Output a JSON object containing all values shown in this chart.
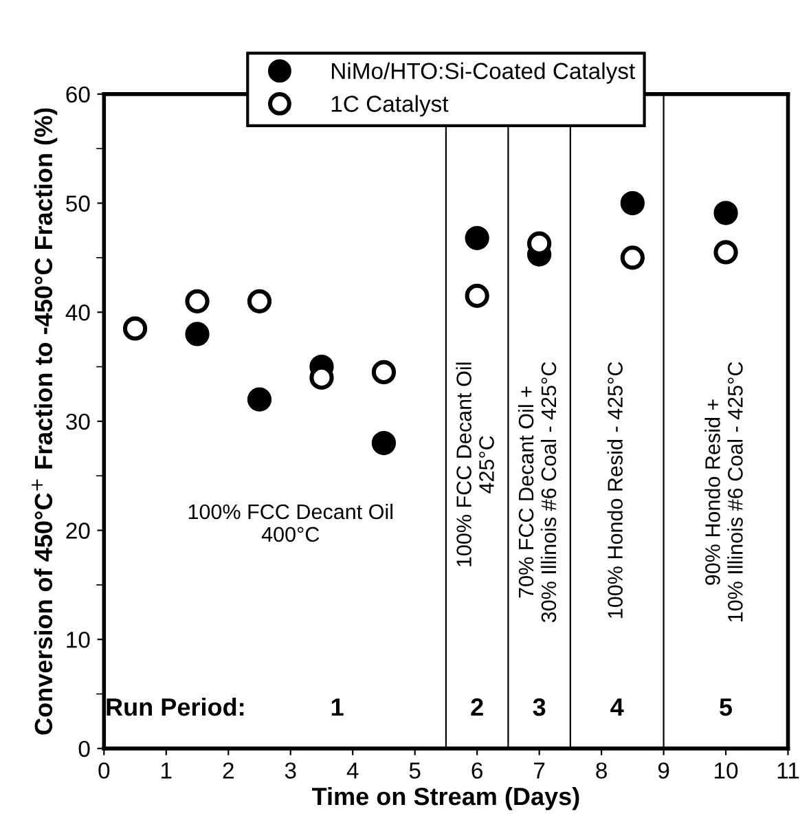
{
  "chart_data": {
    "type": "scatter",
    "xlabel": "Time on Stream (Days)",
    "ylabel": "Conversion of 450°C$^{+}$ Fraction to -450°C Fraction (%)",
    "xlim": [
      0,
      11
    ],
    "xticks": [
      0,
      1,
      2,
      3,
      4,
      5,
      6,
      7,
      8,
      9,
      10,
      11
    ],
    "ylim": [
      0,
      60
    ],
    "yticks": [
      0,
      10,
      20,
      30,
      40,
      50,
      60
    ],
    "grid": false,
    "legend": "top",
    "marker": "circle",
    "series": [
      {
        "name": "NiMo/HTO:Si-Coated Catalyst",
        "color": "#000000",
        "x": [
          1.5,
          2.5,
          3.5,
          4.5,
          6,
          7,
          8.5,
          10
        ],
        "values": [
          38,
          32,
          35,
          28,
          46.8,
          45.3,
          50,
          49.1
        ]
      },
      {
        "name": "1C Catalyst",
        "color": "#000000",
        "x": [
          0.5,
          1.5,
          2.5,
          3.5,
          4.5,
          6,
          7,
          8.5,
          10
        ],
        "values": [
          38.5,
          41,
          41,
          34,
          34.5,
          41.5,
          46.3,
          45,
          45.5
        ]
      }
    ],
    "ref_lines": [
      {
        "axis": "x",
        "value": 5.5,
        "color": "#000000"
      },
      {
        "axis": "x",
        "value": 6.5,
        "color": "#000000"
      },
      {
        "axis": "x",
        "value": 7.5,
        "color": "#000000"
      },
      {
        "axis": "x",
        "value": 9,
        "color": "#000000"
      }
    ],
    "annotations": [
      "100% FCC Decant Oil\n400°C",
      "100% FCC Decant Oil\n425°C",
      "70% FCC Decant Oil +\n30% Illinois #6 Coal - 425°C",
      "100% Hondo Resid - 425°C",
      "90% Hondo Resid +\n10% Illinois #6 Coal - 425°C",
      "Run Period:",
      "1",
      "2",
      "3",
      "4",
      "5"
    ]
  }
}
